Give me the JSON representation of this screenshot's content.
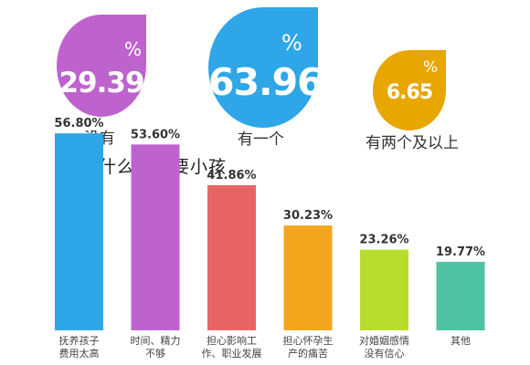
{
  "summary": [
    {
      "value": "29.39",
      "unit": "%",
      "label": "没有",
      "color": "#BE63CE"
    },
    {
      "value": "63.96",
      "unit": "%",
      "label": "有一个",
      "color": "#2EA6E8"
    },
    {
      "value": "6.65",
      "unit": "%",
      "label": "有两个及以上",
      "color": "#E7A600"
    }
  ],
  "chart_data": {
    "type": "bar",
    "title": "您为什么不想要小孩",
    "categories": [
      [
        "抚养孩子",
        "费用太高"
      ],
      [
        "时间、精力",
        "不够"
      ],
      [
        "担心影响工",
        "作、职业发展"
      ],
      [
        "担心怀孕生",
        "产的痛苦"
      ],
      [
        "对婚姻感情",
        "没有信心"
      ],
      [
        "其他"
      ]
    ],
    "values": [
      56.8,
      53.6,
      41.86,
      30.23,
      23.26,
      19.77
    ],
    "value_labels": [
      "56.80%",
      "53.60%",
      "41.86%",
      "30.23%",
      "23.26%",
      "19.77%"
    ],
    "colors": [
      "#2EA6E8",
      "#BE63CE",
      "#E96565",
      "#F4A51E",
      "#B7DC2C",
      "#4EC2A2"
    ],
    "ylim": [
      0,
      60
    ],
    "grid": false,
    "legend": "none",
    "xlabel": "",
    "ylabel": ""
  }
}
